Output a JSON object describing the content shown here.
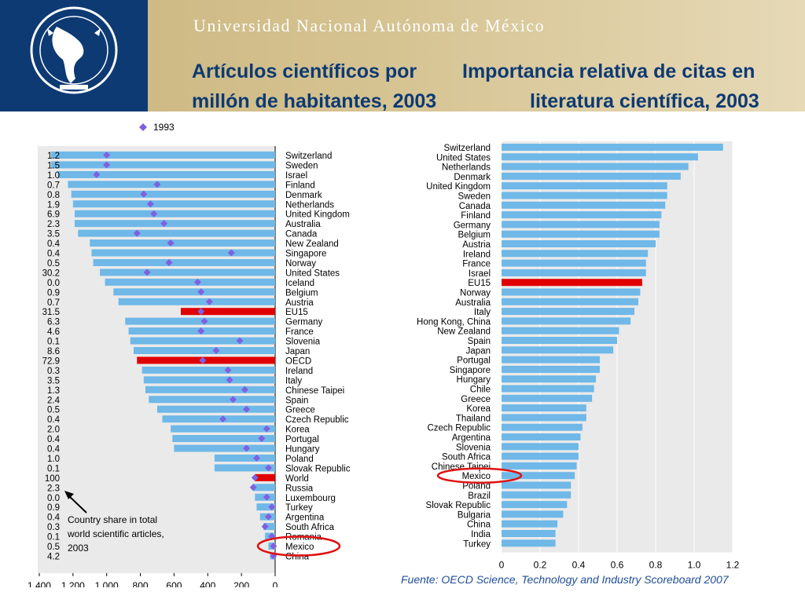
{
  "header": {
    "university": "Universidad Nacional Autónoma de México",
    "title_left": [
      "Artículos científicos por",
      "millón de habitantes, 2003"
    ],
    "title_right": [
      "Importancia relativa de citas en",
      "literatura científica, 2003"
    ]
  },
  "source": "Fuente: OECD Science, Technology and Industry Scoreboard 2007",
  "colors": {
    "bar": "#6fb8e8",
    "highlight": "#e00000",
    "marker": "#8060e0",
    "header_blue": "#0d3a73",
    "circle": "#e01010"
  },
  "chart_data": [
    {
      "type": "bar",
      "orientation": "horizontal",
      "x_axis_direction": "reversed",
      "legend": {
        "marker_label": "1993",
        "placement": "top"
      },
      "annotation": [
        "Country share in total",
        "world scientific articles,",
        "2003"
      ],
      "xlim": [
        0,
        1450
      ],
      "x_ticks": [
        "1 400",
        "1 200",
        "1 000",
        "800",
        "600",
        "400",
        "200",
        "0"
      ],
      "highlighted": [
        "EU15",
        "OECD",
        "World"
      ],
      "circled": "Mexico",
      "categories": [
        "Switzerland",
        "Sweden",
        "Israel",
        "Finland",
        "Denmark",
        "Netherlands",
        "United Kingdom",
        "Australia",
        "Canada",
        "New Zealand",
        "Singapore",
        "Norway",
        "United States",
        "Iceland",
        "Belgium",
        "Austria",
        "EU15",
        "Germany",
        "France",
        "Slovenia",
        "Japan",
        "OECD",
        "Ireland",
        "Italy",
        "Chinese Taipei",
        "Spain",
        "Greece",
        "Czech Republic",
        "Korea",
        "Portugal",
        "Hungary",
        "Poland",
        "Slovak Republic",
        "World",
        "Russia",
        "Luxembourg",
        "Turkey",
        "Argentina",
        "South Africa",
        "Romania",
        "Mexico",
        "China"
      ],
      "share_labels": [
        "1.2",
        "1.5",
        "1.0",
        "0.7",
        "0.8",
        "1.9",
        "6.9",
        "2.3",
        "3.5",
        "0.4",
        "0.4",
        "0.5",
        "30.2",
        "0.0",
        "0.9",
        "0.7",
        "31.5",
        "6.3",
        "4.6",
        "0.1",
        "8.6",
        "72.9",
        "0.3",
        "3.5",
        "1.3",
        "2.4",
        "0.5",
        "0.4",
        "2.0",
        "0.4",
        "0.4",
        "1.0",
        "0.1",
        "100",
        "2.3",
        "0.0",
        "0.9",
        "0.4",
        "0.3",
        "0.1",
        "0.5",
        "4.2"
      ],
      "series": [
        {
          "values": [
            1330,
            1330,
            1290,
            1230,
            1210,
            1200,
            1190,
            1190,
            1170,
            1100,
            1090,
            1080,
            1040,
            1010,
            960,
            930,
            560,
            890,
            870,
            860,
            840,
            820,
            790,
            780,
            770,
            750,
            700,
            670,
            620,
            610,
            600,
            360,
            360,
            120,
            130,
            120,
            110,
            90,
            70,
            60,
            40,
            30
          ]
        },
        {
          "name": "1993",
          "values": [
            1000,
            1000,
            1060,
            700,
            780,
            740,
            720,
            660,
            820,
            620,
            260,
            630,
            760,
            460,
            440,
            390,
            440,
            420,
            440,
            210,
            350,
            430,
            280,
            270,
            180,
            250,
            170,
            310,
            50,
            80,
            170,
            110,
            40,
            120,
            130,
            50,
            20,
            40,
            60,
            20,
            10,
            10
          ]
        }
      ]
    },
    {
      "type": "bar",
      "orientation": "horizontal",
      "xlim": [
        0,
        1.2
      ],
      "x_ticks": [
        "0",
        "0.2",
        "0.4",
        "0.6",
        "0.8",
        "1.0",
        "1.2"
      ],
      "highlighted": [
        "EU15"
      ],
      "circled": "Mexico",
      "categories": [
        "Switzerland",
        "United States",
        "Netherlands",
        "Denmark",
        "United Kingdom",
        "Sweden",
        "Canada",
        "Finland",
        "Germany",
        "Belgium",
        "Austria",
        "Ireland",
        "France",
        "Israel",
        "EU15",
        "Norway",
        "Australia",
        "Italy",
        "Hong Kong, China",
        "New Zealand",
        "Spain",
        "Japan",
        "Portugal",
        "Singapore",
        "Hungary",
        "Chile",
        "Greece",
        "Korea",
        "Thailand",
        "Czech Republic",
        "Argentina",
        "Slovenia",
        "South Africa",
        "Chinese Taipei",
        "Mexico",
        "Poland",
        "Brazil",
        "Slovak Republic",
        "Bulgaria",
        "China",
        "India",
        "Turkey"
      ],
      "series": [
        {
          "values": [
            1.15,
            1.02,
            0.97,
            0.93,
            0.86,
            0.86,
            0.85,
            0.83,
            0.82,
            0.82,
            0.8,
            0.76,
            0.75,
            0.75,
            0.73,
            0.72,
            0.71,
            0.69,
            0.67,
            0.61,
            0.6,
            0.58,
            0.51,
            0.51,
            0.49,
            0.48,
            0.47,
            0.44,
            0.44,
            0.42,
            0.41,
            0.4,
            0.4,
            0.39,
            0.38,
            0.36,
            0.36,
            0.34,
            0.32,
            0.29,
            0.28,
            0.28
          ]
        }
      ]
    }
  ]
}
